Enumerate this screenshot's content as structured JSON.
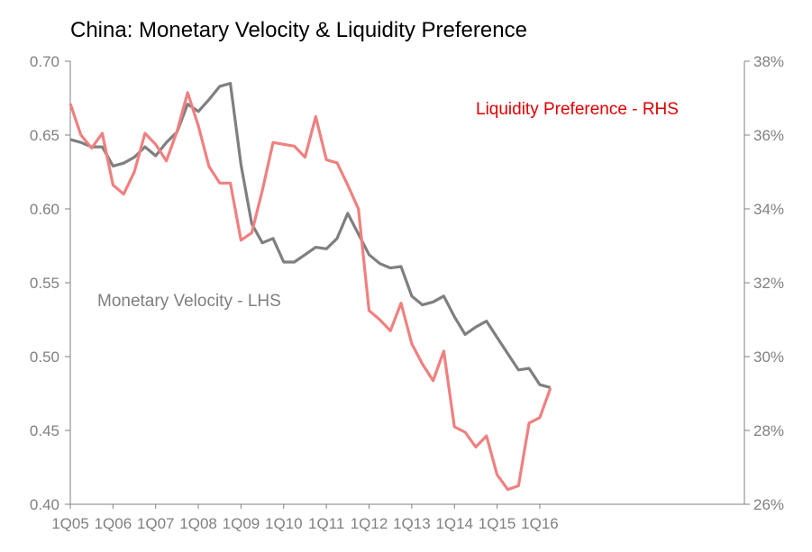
{
  "chart_data": {
    "type": "line",
    "title": "China: Monetary Velocity & Liquidity Preference",
    "x_ticks": [
      "1Q05",
      "1Q06",
      "1Q07",
      "1Q08",
      "1Q09",
      "1Q10",
      "1Q11",
      "1Q12",
      "1Q13",
      "1Q14",
      "1Q15",
      "1Q16"
    ],
    "y_left": {
      "range": [
        0.4,
        0.7
      ],
      "ticks": [
        "0.70",
        "0.65",
        "0.60",
        "0.55",
        "0.50",
        "0.45",
        "0.40"
      ]
    },
    "y_right": {
      "range": [
        0.26,
        0.38
      ],
      "ticks": [
        "38%",
        "36%",
        "34%",
        "32%",
        "30%",
        "28%",
        "26%"
      ]
    },
    "grid": false,
    "colors": {
      "velocity": "#7f7f7f",
      "liquidity": "#f08080",
      "liquidity_label": "#e00000",
      "velocity_label": "#7f7f7f",
      "axis": "#808080"
    },
    "series": [
      {
        "name": "Monetary Velocity - LHS",
        "axis": "left",
        "values": [
          0.647,
          0.645,
          0.642,
          0.642,
          0.629,
          0.631,
          0.635,
          0.642,
          0.636,
          0.645,
          0.652,
          0.671,
          0.666,
          0.674,
          0.683,
          0.685,
          0.63,
          0.59,
          0.577,
          0.58,
          0.564,
          0.564,
          0.569,
          0.574,
          0.573,
          0.58,
          0.597,
          0.583,
          0.569,
          0.563,
          0.56,
          0.561,
          0.541,
          0.535,
          0.537,
          0.541,
          0.527,
          0.515,
          0.52,
          0.524,
          0.513,
          0.502,
          0.491,
          0.492,
          0.481,
          0.479
        ]
      },
      {
        "name": "Liquidity Preference - RHS",
        "axis": "right",
        "values": [
          0.3685,
          0.36,
          0.3565,
          0.3605,
          0.3465,
          0.344,
          0.35,
          0.3605,
          0.3575,
          0.353,
          0.361,
          0.3715,
          0.3625,
          0.3515,
          0.347,
          0.347,
          0.3315,
          0.3335,
          0.345,
          0.358,
          0.3575,
          0.357,
          0.354,
          0.365,
          0.3533,
          0.3525,
          0.3465,
          0.34,
          0.3125,
          0.31,
          0.307,
          0.3145,
          0.3035,
          0.298,
          0.2935,
          0.3015,
          0.281,
          0.2795,
          0.2755,
          0.2785,
          0.268,
          0.264,
          0.265,
          0.282,
          0.2835,
          0.2915
        ]
      }
    ]
  }
}
